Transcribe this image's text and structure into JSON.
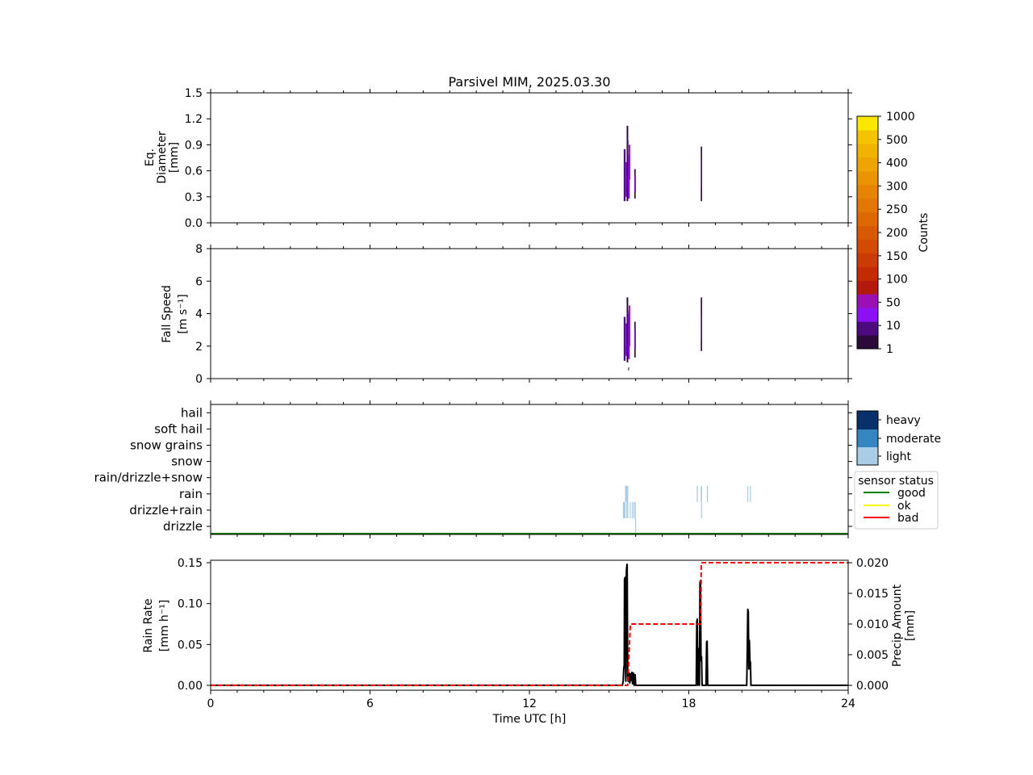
{
  "title": "Parsivel MIM, 2025.03.30",
  "xlabel": "Time UTC [h]",
  "xticks": [
    "0",
    "6",
    "12",
    "18",
    "24"
  ],
  "colors": {
    "counts_scale": [
      "#2b0a3a",
      "#4c0a7e",
      "#8b10f4",
      "#9b10b5",
      "#b3190d",
      "#c22b04",
      "#cb3b03",
      "#d34a02",
      "#d85902",
      "#de6802",
      "#e37703",
      "#e78503",
      "#eb9403",
      "#eea402",
      "#f1b300",
      "#f4c400",
      "#fbe700"
    ],
    "weather_heavy": "#08306b",
    "weather_moderate": "#3585c1",
    "weather_light": "#a9cde4",
    "status_good": "#008000",
    "status_ok": "#ffff00",
    "status_bad": "#ff0000",
    "rain_rate": "#000000",
    "precip_amount": "#ff0000"
  },
  "chart_data": [
    {
      "type": "heatmap",
      "panel": "diameter",
      "ylabel": [
        "Eq.",
        "Diameter",
        "[mm]"
      ],
      "ylim": [
        0,
        1.5
      ],
      "yticks": [
        "0.0",
        "0.3",
        "0.6",
        "0.9",
        "1.2",
        "1.5"
      ],
      "xlim": [
        0,
        24
      ],
      "cells": [
        {
          "t0": 15.55,
          "t1": 15.62,
          "d0": 0.25,
          "d1": 0.85,
          "level": 1
        },
        {
          "t0": 15.6,
          "t1": 15.66,
          "d0": 0.3,
          "d1": 0.7,
          "level": 2
        },
        {
          "t0": 15.66,
          "t1": 15.72,
          "d0": 0.25,
          "d1": 1.12,
          "level": 0
        },
        {
          "t0": 15.68,
          "t1": 15.73,
          "d0": 0.4,
          "d1": 0.95,
          "level": 1
        },
        {
          "t0": 15.72,
          "t1": 15.78,
          "d0": 0.28,
          "d1": 0.78,
          "level": 2
        },
        {
          "t0": 15.74,
          "t1": 15.8,
          "d0": 0.5,
          "d1": 0.9,
          "level": 3
        },
        {
          "t0": 15.95,
          "t1": 16.0,
          "d0": 0.28,
          "d1": 0.62,
          "level": 0
        },
        {
          "t0": 15.96,
          "t1": 16.01,
          "d0": 0.35,
          "d1": 0.55,
          "level": 2
        },
        {
          "t0": 18.45,
          "t1": 18.5,
          "d0": 0.25,
          "d1": 0.88,
          "level": 0
        },
        {
          "t0": 18.46,
          "t1": 18.5,
          "d0": 0.4,
          "d1": 0.75,
          "level": 1
        }
      ]
    },
    {
      "type": "heatmap",
      "panel": "fall_speed",
      "ylabel": [
        "Fall Speed",
        "[m s⁻¹]"
      ],
      "ylim": [
        0,
        8
      ],
      "yticks": [
        "0",
        "2",
        "4",
        "6",
        "8"
      ],
      "xlim": [
        0,
        24
      ],
      "cells": [
        {
          "t0": 15.55,
          "t1": 15.62,
          "v0": 1.1,
          "v1": 3.8,
          "level": 1
        },
        {
          "t0": 15.6,
          "t1": 15.66,
          "v0": 1.4,
          "v1": 3.4,
          "level": 2
        },
        {
          "t0": 15.66,
          "t1": 15.72,
          "v0": 1.0,
          "v1": 5.0,
          "level": 0
        },
        {
          "t0": 15.68,
          "t1": 15.73,
          "v0": 1.5,
          "v1": 4.2,
          "level": 1
        },
        {
          "t0": 15.72,
          "t1": 15.78,
          "v0": 1.2,
          "v1": 4.0,
          "level": 2
        },
        {
          "t0": 15.74,
          "t1": 15.8,
          "v0": 2.0,
          "v1": 4.5,
          "level": 3
        },
        {
          "t0": 15.72,
          "t1": 15.75,
          "v0": 0.5,
          "v1": 0.7,
          "level": 0
        },
        {
          "t0": 15.95,
          "t1": 16.0,
          "v0": 1.3,
          "v1": 3.5,
          "level": 0
        },
        {
          "t0": 15.96,
          "t1": 16.01,
          "v0": 1.8,
          "v1": 3.0,
          "level": 2
        },
        {
          "t0": 18.45,
          "t1": 18.5,
          "v0": 1.7,
          "v1": 5.0,
          "level": 0
        },
        {
          "t0": 18.46,
          "t1": 18.5,
          "v0": 2.4,
          "v1": 4.0,
          "level": 1
        }
      ]
    },
    {
      "type": "heatmap",
      "panel": "present_weather",
      "categories": [
        "drizzle",
        "drizzle+rain",
        "rain",
        "rain/drizzle+snow",
        "snow",
        "snow grains",
        "soft hail",
        "hail"
      ],
      "intensity_legend": [
        "heavy",
        "moderate",
        "light"
      ],
      "status_legend": {
        "title": "sensor status",
        "entries": [
          "good",
          "ok",
          "bad"
        ]
      },
      "status_line": {
        "status": "good",
        "t0": 0,
        "t1": 24
      },
      "bars": [
        {
          "t0": 15.6,
          "t1": 15.72,
          "category": "rain",
          "intensity": "light"
        },
        {
          "t0": 15.52,
          "t1": 15.62,
          "category": "drizzle+rain",
          "intensity": "light"
        },
        {
          "t0": 15.65,
          "t1": 15.72,
          "category": "drizzle+rain",
          "intensity": "light"
        },
        {
          "t0": 15.78,
          "t1": 15.8,
          "category": "drizzle+rain",
          "intensity": "light"
        },
        {
          "t0": 15.86,
          "t1": 15.88,
          "category": "drizzle+rain",
          "intensity": "light"
        },
        {
          "t0": 15.92,
          "t1": 15.94,
          "category": "drizzle+rain",
          "intensity": "light"
        },
        {
          "t0": 15.97,
          "t1": 16.0,
          "category": "drizzle+rain",
          "intensity": "light"
        },
        {
          "t0": 15.98,
          "t1": 16.0,
          "category": "drizzle",
          "intensity": "light"
        },
        {
          "t0": 18.3,
          "t1": 18.34,
          "category": "rain",
          "intensity": "light"
        },
        {
          "t0": 18.45,
          "t1": 18.5,
          "category": "rain",
          "intensity": "light"
        },
        {
          "t0": 18.46,
          "t1": 18.49,
          "category": "drizzle+rain",
          "intensity": "light"
        },
        {
          "t0": 18.68,
          "t1": 18.72,
          "category": "rain",
          "intensity": "light"
        },
        {
          "t0": 20.2,
          "t1": 20.23,
          "category": "rain",
          "intensity": "light"
        },
        {
          "t0": 20.3,
          "t1": 20.33,
          "category": "rain",
          "intensity": "light"
        }
      ]
    },
    {
      "type": "line",
      "panel": "rain",
      "ylabel": [
        "Rain Rate",
        "[mm h⁻¹]"
      ],
      "ylim": [
        -0.006,
        0.153
      ],
      "yticks": [
        "0.00",
        "0.05",
        "0.10",
        "0.15"
      ],
      "y2label": [
        "Precip Amount",
        "[mm]"
      ],
      "y2lim": [
        -0.0008,
        0.0204
      ],
      "y2ticks": [
        "0.000",
        "0.005",
        "0.010",
        "0.015",
        "0.020"
      ],
      "xlim": [
        0,
        24
      ],
      "rain_rate": {
        "x": [
          0,
          15.45,
          15.5,
          15.53,
          15.55,
          15.57,
          15.58,
          15.6,
          15.62,
          15.63,
          15.65,
          15.67,
          15.68,
          15.7,
          15.72,
          15.74,
          15.76,
          15.78,
          15.8,
          15.82,
          15.84,
          15.86,
          15.88,
          15.9,
          15.92,
          15.94,
          15.96,
          15.98,
          16.0,
          16.02,
          18.28,
          18.3,
          18.32,
          18.34,
          18.36,
          18.38,
          18.4,
          18.42,
          18.44,
          18.46,
          18.48,
          18.5,
          18.52,
          18.54,
          18.6,
          18.65,
          18.67,
          18.69,
          18.71,
          18.73,
          20.15,
          20.18,
          20.2,
          20.22,
          20.24,
          20.26,
          20.28,
          20.3,
          20.32,
          20.34,
          24
        ],
        "y": [
          0,
          0,
          0,
          0.005,
          0.02,
          0.025,
          0.13,
          0.132,
          0.02,
          0.005,
          0.14,
          0.147,
          0.148,
          0.01,
          0.005,
          0.012,
          0.015,
          0.003,
          0.014,
          0.006,
          0.013,
          0.016,
          0.002,
          0.012,
          0.015,
          0,
          0.01,
          0.013,
          0,
          0,
          0,
          0.078,
          0.081,
          0,
          0.045,
          0.038,
          0,
          0.125,
          0.128,
          0.03,
          0.035,
          0,
          0,
          0,
          0,
          0,
          0.053,
          0.054,
          0,
          0,
          0,
          0,
          0.04,
          0.093,
          0.09,
          0.02,
          0.055,
          0.03,
          0.028,
          0,
          0
        ]
      },
      "precip_amount": {
        "x": [
          0,
          15.7,
          15.8,
          18.45,
          18.47,
          24
        ],
        "y": [
          0,
          0,
          0.01,
          0.01,
          0.02,
          0.02
        ]
      }
    }
  ]
}
